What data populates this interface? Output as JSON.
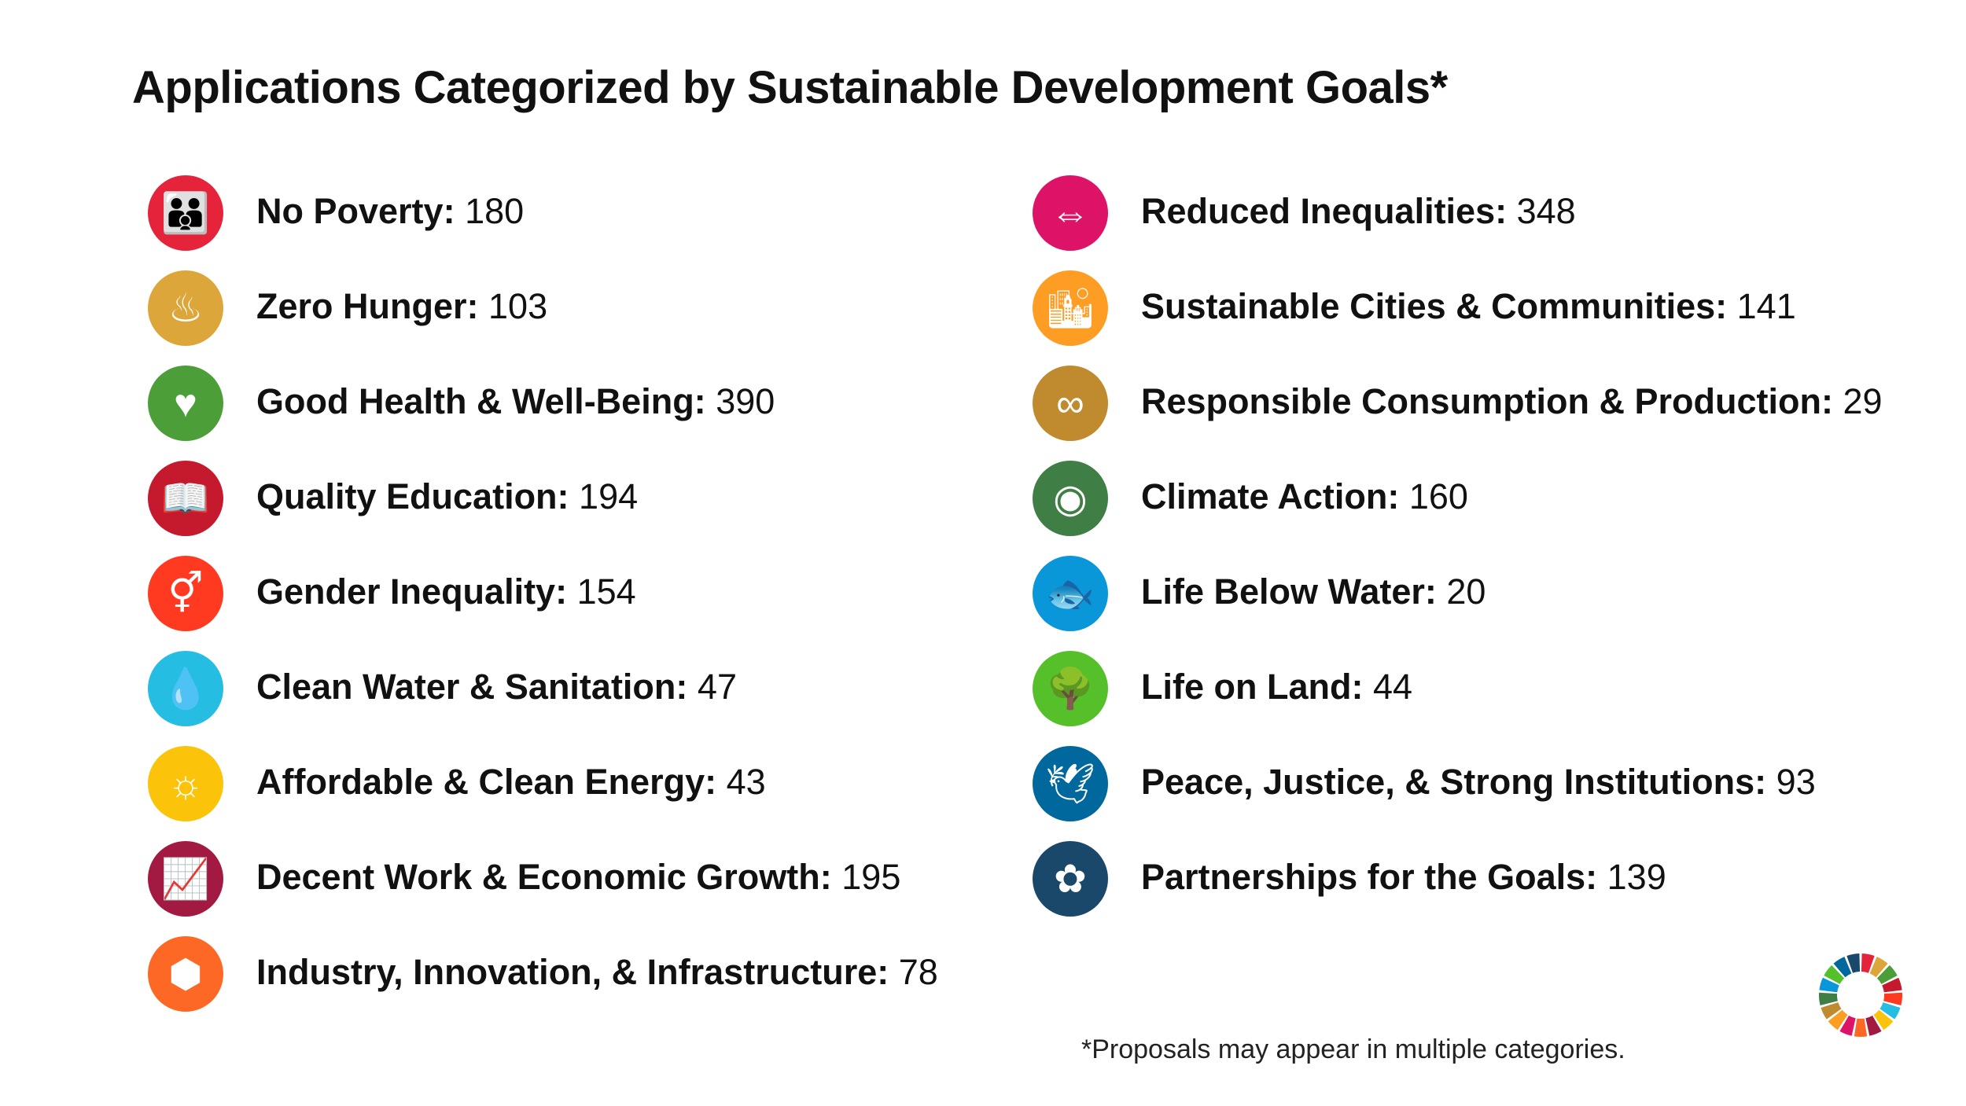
{
  "title": "Applications Categorized by Sustainable Development Goals*",
  "goals": [
    {
      "label": "No Poverty:",
      "count": "180",
      "color": "#E5243B",
      "icon": "family-icon",
      "glyph": "👪"
    },
    {
      "label": "Zero Hunger:",
      "count": "103",
      "color": "#DDA63A",
      "icon": "bowl-icon",
      "glyph": "♨"
    },
    {
      "label": "Good Health & Well-Being:",
      "count": "390",
      "color": "#4C9F38",
      "icon": "heartbeat-icon",
      "glyph": "♥"
    },
    {
      "label": "Quality Education:",
      "count": "194",
      "color": "#C5192D",
      "icon": "book-icon",
      "glyph": "📖"
    },
    {
      "label": "Gender Inequality:",
      "count": "154",
      "color": "#FF3A21",
      "icon": "gender-equality-icon",
      "glyph": "⚥"
    },
    {
      "label": "Clean Water & Sanitation:",
      "count": "47",
      "color": "#26BDE2",
      "icon": "water-drop-icon",
      "glyph": "💧"
    },
    {
      "label": "Affordable & Clean Energy:",
      "count": "43",
      "color": "#FCC30B",
      "icon": "sun-power-icon",
      "glyph": "☼"
    },
    {
      "label": "Decent Work & Economic Growth:",
      "count": "195",
      "color": "#A21942",
      "icon": "growth-chart-icon",
      "glyph": "📈"
    },
    {
      "label": "Industry, Innovation, & Infrastructure:",
      "count": "78",
      "color": "#FD6925",
      "icon": "cubes-icon",
      "glyph": "⬢"
    },
    {
      "label": "Reduced Inequalities:",
      "count": "348",
      "color": "#DD1367",
      "icon": "equals-arrows-icon",
      "glyph": "⇔"
    },
    {
      "label": "Sustainable Cities & Communities:",
      "count": "141",
      "color": "#FD9D24",
      "icon": "city-icon",
      "glyph": "🏙"
    },
    {
      "label": "Responsible Consumption & Production:",
      "count": "29",
      "color": "#BF8B2E",
      "icon": "infinity-icon",
      "glyph": "∞"
    },
    {
      "label": "Climate Action:",
      "count": "160",
      "color": "#3F7E44",
      "icon": "eye-globe-icon",
      "glyph": "◉"
    },
    {
      "label": "Life Below Water:",
      "count": "20",
      "color": "#0A97D9",
      "icon": "fish-icon",
      "glyph": "🐟"
    },
    {
      "label": "Life on Land:",
      "count": "44",
      "color": "#56C02B",
      "icon": "tree-icon",
      "glyph": "🌳"
    },
    {
      "label": "Peace, Justice, & Strong Institutions:",
      "count": "93",
      "color": "#00689D",
      "icon": "dove-icon",
      "glyph": "🕊"
    },
    {
      "label": "Partnerships for the Goals:",
      "count": "139",
      "color": "#19486A",
      "icon": "rings-icon",
      "glyph": "✿"
    }
  ],
  "footnote": "*Proposals may appear in multiple categories."
}
